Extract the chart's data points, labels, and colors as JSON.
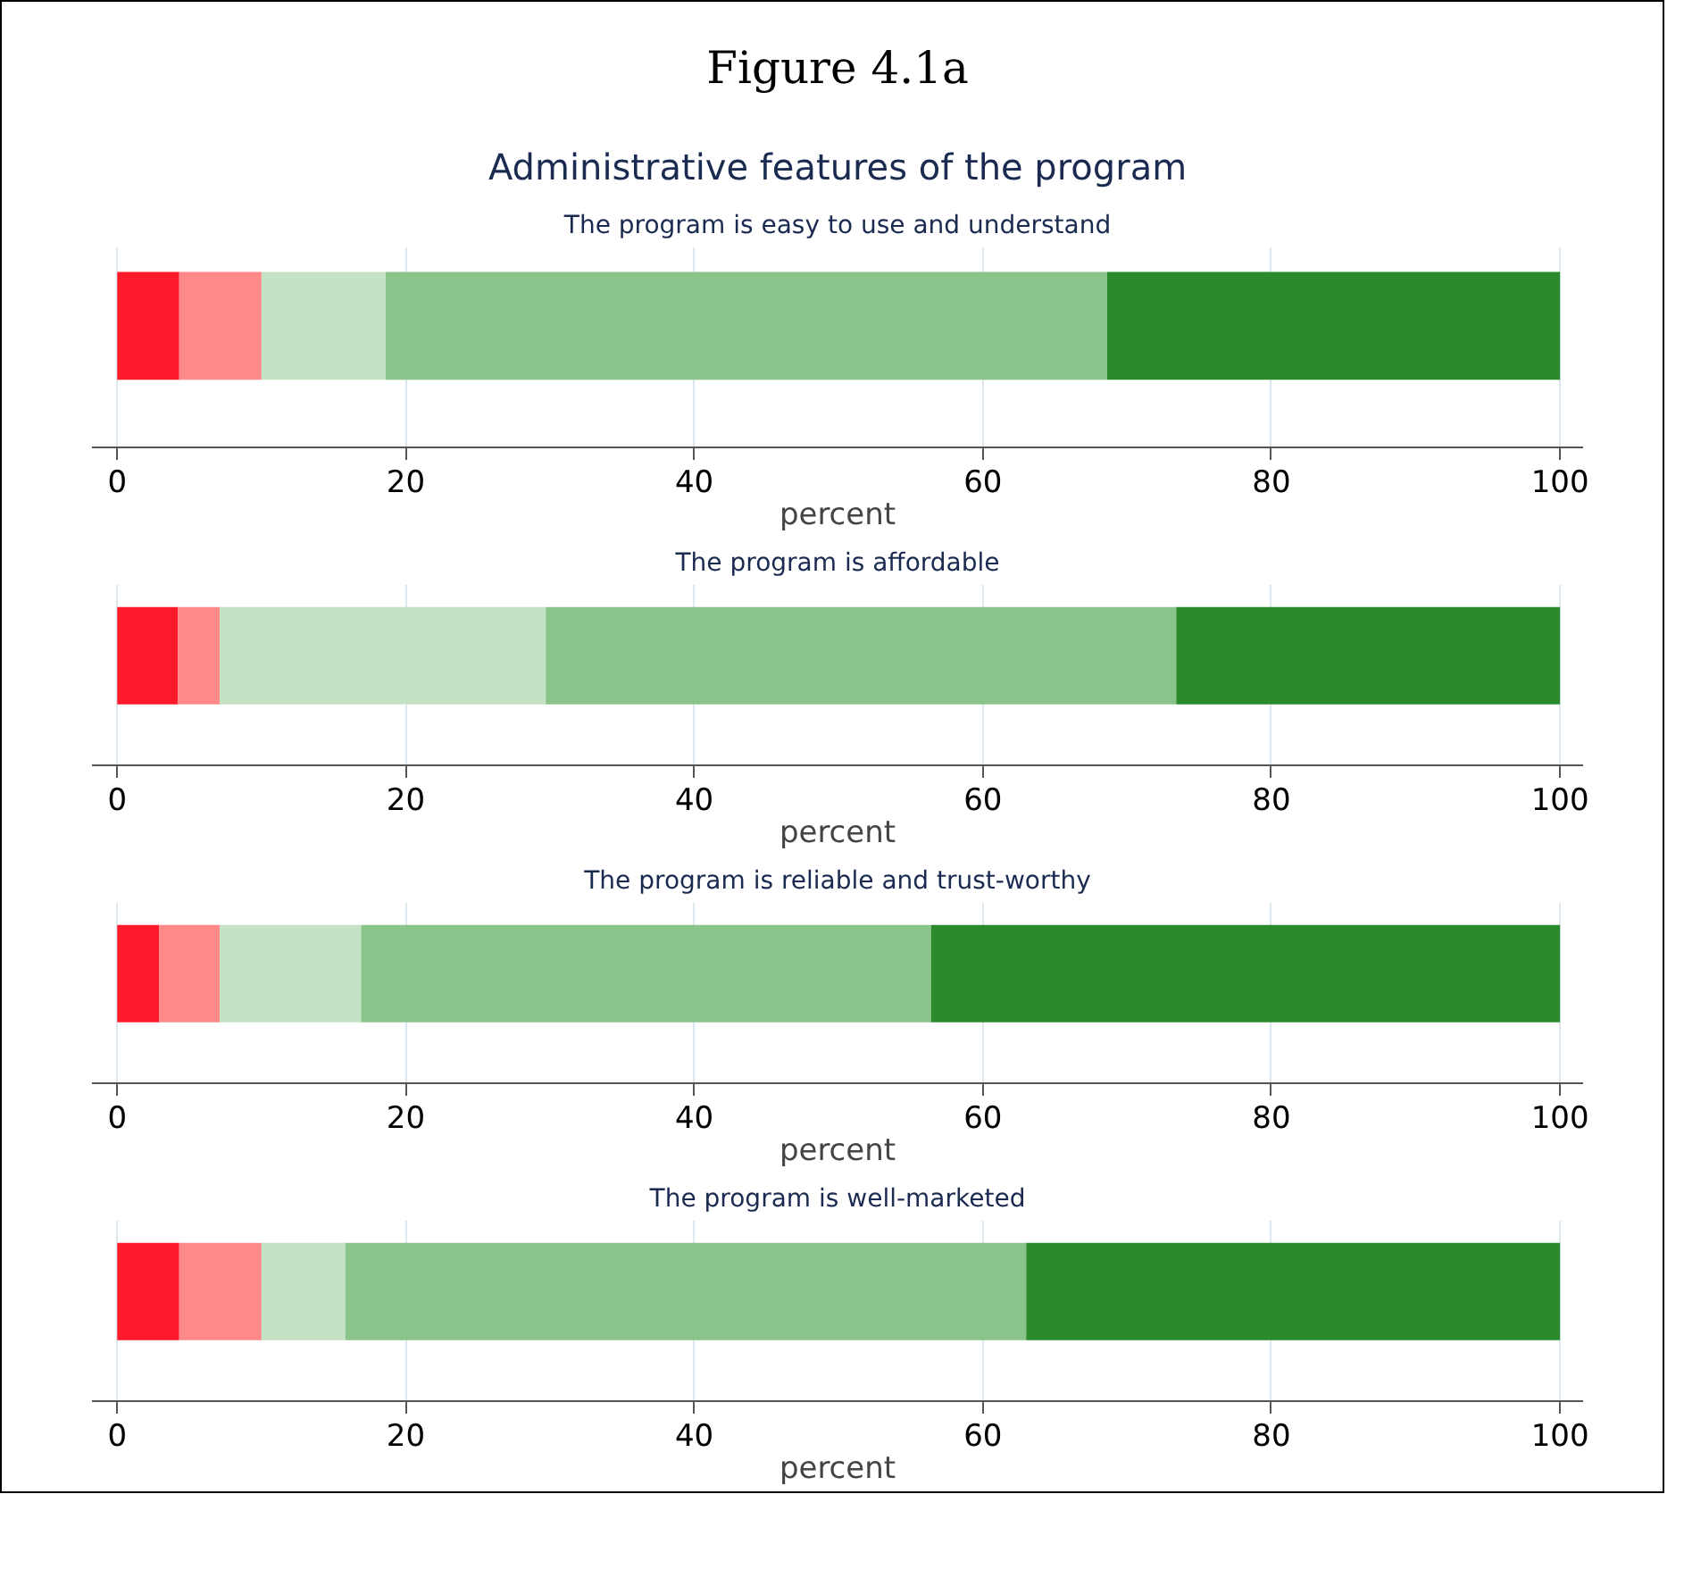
{
  "chart_data": [
    {
      "type": "bar",
      "orientation": "horizontal",
      "stacked": true,
      "annotations": [
        "Figure 4.1a"
      ],
      "title": "Administrative features of the program",
      "subtitle": "The program is easy to use and understand",
      "xlabel": "percent",
      "categories": [
        null
      ],
      "xlim": [
        -1.75,
        101.6
      ],
      "xticks": [
        0,
        20,
        40,
        60,
        80,
        100
      ],
      "grid": "x",
      "series": [
        {
          "color": "#ff1a2b",
          "values": [
            4.3
          ]
        },
        {
          "color": "#ff8888",
          "values": [
            5.7
          ]
        },
        {
          "color": "#c4e2c4",
          "values": [
            8.6
          ]
        },
        {
          "color": "#8bc48b",
          "values": [
            50.0
          ]
        },
        {
          "color": "#2b8a2b",
          "values": [
            31.4
          ]
        }
      ]
    },
    {
      "type": "bar",
      "orientation": "horizontal",
      "stacked": true,
      "subtitle": "The program is affordable",
      "xlabel": "percent",
      "categories": [
        null
      ],
      "xlim": [
        -1.75,
        101.6
      ],
      "xticks": [
        0,
        20,
        40,
        60,
        80,
        100
      ],
      "grid": "x",
      "series": [
        {
          "color": "#ff1a2b",
          "values": [
            4.2
          ]
        },
        {
          "color": "#ff8888",
          "values": [
            2.9
          ]
        },
        {
          "color": "#c4e2c4",
          "values": [
            22.6
          ]
        },
        {
          "color": "#8bc48b",
          "values": [
            43.7
          ]
        },
        {
          "color": "#2b8a2b",
          "values": [
            26.6
          ]
        }
      ]
    },
    {
      "type": "bar",
      "orientation": "horizontal",
      "stacked": true,
      "subtitle": "The program is reliable and trust-worthy",
      "xlabel": "percent",
      "categories": [
        null
      ],
      "xlim": [
        -1.75,
        101.6
      ],
      "xticks": [
        0,
        20,
        40,
        60,
        80,
        100
      ],
      "grid": "x",
      "series": [
        {
          "color": "#ff1a2b",
          "values": [
            2.9
          ]
        },
        {
          "color": "#ff8888",
          "values": [
            4.2
          ]
        },
        {
          "color": "#c4e2c4",
          "values": [
            9.8
          ]
        },
        {
          "color": "#8bc48b",
          "values": [
            39.5
          ]
        },
        {
          "color": "#2b8a2b",
          "values": [
            43.6
          ]
        }
      ]
    },
    {
      "type": "bar",
      "orientation": "horizontal",
      "stacked": true,
      "subtitle": "The program is well-marketed",
      "xlabel": "percent",
      "categories": [
        null
      ],
      "xlim": [
        -1.75,
        101.6
      ],
      "xticks": [
        0,
        20,
        40,
        60,
        80,
        100
      ],
      "grid": "x",
      "series": [
        {
          "color": "#ff1a2b",
          "values": [
            4.3
          ]
        },
        {
          "color": "#ff8888",
          "values": [
            5.7
          ]
        },
        {
          "color": "#c4e2c4",
          "values": [
            5.8
          ]
        },
        {
          "color": "#8bc48b",
          "values": [
            47.2
          ]
        },
        {
          "color": "#2b8a2b",
          "values": [
            37.0
          ]
        }
      ]
    }
  ]
}
